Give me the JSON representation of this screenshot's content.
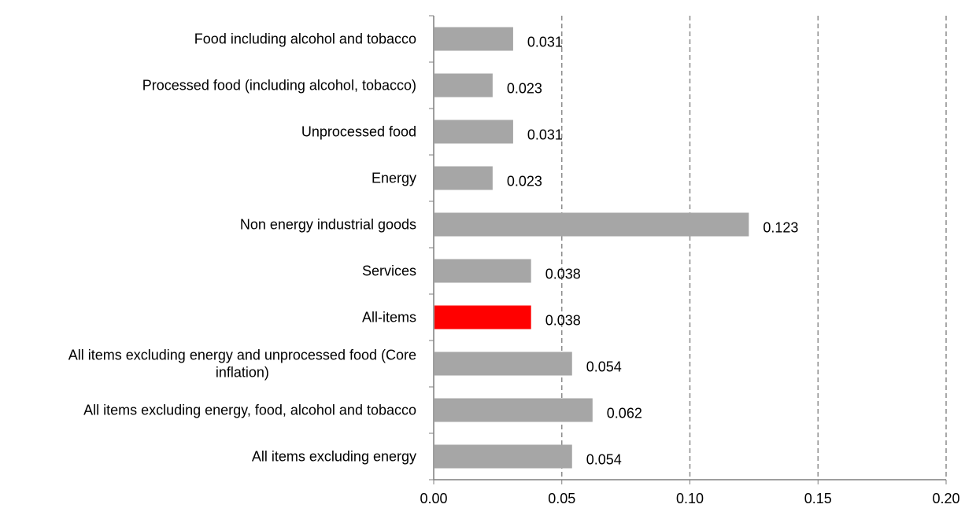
{
  "chart_data": {
    "type": "bar",
    "orientation": "horizontal",
    "title": "",
    "xlabel": "",
    "ylabel": "",
    "xlim": [
      0,
      0.2
    ],
    "xticks": [
      "0.00",
      "0.05",
      "0.10",
      "0.15",
      "0.20"
    ],
    "grid": "vertical dashed",
    "legend": "none",
    "categories": [
      [
        "Food including alcohol and tobacco"
      ],
      [
        "Processed food (including alcohol, tobacco)"
      ],
      [
        "Unprocessed food"
      ],
      [
        "Energy"
      ],
      [
        "Non energy industrial goods"
      ],
      [
        "Services"
      ],
      [
        "All-items"
      ],
      [
        "All items excluding energy and unprocessed food (Core",
        "inflation)"
      ],
      [
        "All items excluding energy, food, alcohol and tobacco"
      ],
      [
        "All items excluding energy"
      ]
    ],
    "values": [
      0.031,
      0.023,
      0.031,
      0.023,
      0.123,
      0.038,
      0.038,
      0.054,
      0.062,
      0.054
    ],
    "value_labels": [
      "0.031",
      "0.023",
      "0.031",
      "0.023",
      "0.123",
      "0.038",
      "0.038",
      "0.054",
      "0.062",
      "0.054"
    ],
    "bar_colors": [
      "#a6a6a6",
      "#a6a6a6",
      "#a6a6a6",
      "#a6a6a6",
      "#a6a6a6",
      "#a6a6a6",
      "#ff0000",
      "#a6a6a6",
      "#a6a6a6",
      "#a6a6a6"
    ]
  }
}
